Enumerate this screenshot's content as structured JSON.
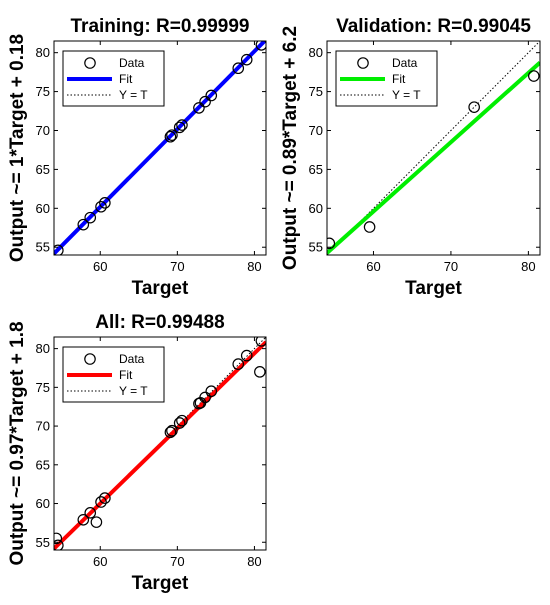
{
  "chart_data": [
    {
      "type": "scatter",
      "panel": "training",
      "title": "Training: R=0.99999",
      "xlabel": "Target",
      "ylabel": "Output ~= 1*Target + 0.18",
      "xlim": [
        54,
        81.5
      ],
      "ylim": [
        54,
        81.5
      ],
      "xticks": [
        60,
        70,
        80
      ],
      "yticks": [
        55,
        60,
        65,
        70,
        75,
        80
      ],
      "fit": {
        "slope": 1.0,
        "intercept": 0.18,
        "color": "#0000ff"
      },
      "legend": {
        "position": "top-left",
        "entries": [
          "Data",
          "Fit",
          "Y = T"
        ]
      },
      "series": [
        {
          "name": "Data",
          "x": [
            54.5,
            57.8,
            58.7,
            60.1,
            60.6,
            69.1,
            69.3,
            70.3,
            70.6,
            72.8,
            73.6,
            74.4,
            77.9,
            79.0,
            80.9
          ],
          "y": [
            54.6,
            57.9,
            58.8,
            60.2,
            60.7,
            69.2,
            69.4,
            70.4,
            70.7,
            72.9,
            73.7,
            74.5,
            78.0,
            79.1,
            81.0
          ]
        }
      ]
    },
    {
      "type": "scatter",
      "panel": "validation",
      "title": "Validation: R=0.99045",
      "xlabel": "Target",
      "ylabel": "Output ~= 0.89*Target + 6.2",
      "xlim": [
        54,
        81.5
      ],
      "ylim": [
        54,
        81.5
      ],
      "xticks": [
        60,
        70,
        80
      ],
      "yticks": [
        55,
        60,
        65,
        70,
        75,
        80
      ],
      "fit": {
        "slope": 0.89,
        "intercept": 6.2,
        "color": "#00ee00"
      },
      "legend": {
        "position": "top-left",
        "entries": [
          "Data",
          "Fit",
          "Y = T"
        ]
      },
      "series": [
        {
          "name": "Data",
          "x": [
            54.3,
            59.5,
            73.0,
            80.7
          ],
          "y": [
            55.5,
            57.6,
            73.0,
            77.0
          ]
        }
      ]
    },
    {
      "type": "scatter",
      "panel": "all",
      "title": "All: R=0.99488",
      "xlabel": "Target",
      "ylabel": "Output ~= 0.97*Target + 1.8",
      "xlim": [
        54,
        81.5
      ],
      "ylim": [
        54,
        81.5
      ],
      "xticks": [
        60,
        70,
        80
      ],
      "yticks": [
        55,
        60,
        65,
        70,
        75,
        80
      ],
      "fit": {
        "slope": 0.97,
        "intercept": 1.8,
        "color": "#ff0000"
      },
      "legend": {
        "position": "top-left",
        "entries": [
          "Data",
          "Fit",
          "Y = T"
        ]
      },
      "series": [
        {
          "name": "Data",
          "x": [
            54.3,
            54.5,
            57.8,
            58.7,
            59.5,
            60.1,
            60.6,
            69.1,
            69.3,
            70.3,
            70.6,
            72.8,
            73.0,
            73.6,
            74.4,
            77.9,
            79.0,
            80.7,
            80.9
          ],
          "y": [
            55.5,
            54.6,
            57.9,
            58.8,
            57.6,
            60.2,
            60.7,
            69.2,
            69.4,
            70.4,
            70.7,
            72.9,
            73.0,
            73.7,
            74.5,
            78.0,
            79.1,
            77.0,
            81.0
          ]
        }
      ]
    }
  ]
}
